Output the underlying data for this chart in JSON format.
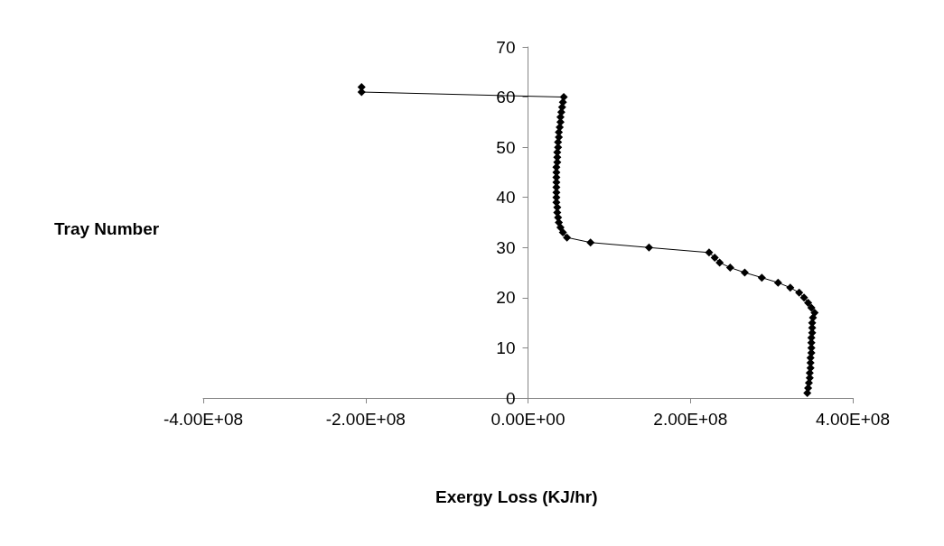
{
  "chart_data": {
    "type": "line",
    "xlabel": "Exergy Loss (KJ/hr)",
    "ylabel": "Tray Number",
    "marker": "diamond",
    "line_style": "solid",
    "grid": false,
    "xlim": [
      -400000000,
      400000000
    ],
    "xticks": [
      {
        "value": -400000000,
        "label": "-4.00E+08"
      },
      {
        "value": -200000000,
        "label": "-2.00E+08"
      },
      {
        "value": 0,
        "label": "0.00E+00"
      },
      {
        "value": 200000000,
        "label": "2.00E+08"
      },
      {
        "value": 400000000,
        "label": "4.00E+08"
      }
    ],
    "ylim": [
      0,
      70
    ],
    "yticks": [
      0,
      10,
      20,
      30,
      40,
      50,
      60,
      70
    ],
    "series": [
      {
        "color": "#000000",
        "x": [
          344000000,
          345000000,
          346000000,
          347000000,
          347000000,
          348000000,
          348000000,
          348000000,
          349000000,
          349000000,
          349000000,
          349000000,
          350000000,
          350000000,
          350000000,
          351000000,
          353000000,
          349000000,
          345000000,
          340000000,
          334000000,
          323000000,
          308000000,
          288000000,
          267000000,
          249000000,
          236000000,
          230000000,
          223000000,
          149000000,
          77000000,
          48000000,
          43000000,
          40000000,
          38000000,
          37000000,
          36000000,
          36000000,
          35000000,
          35000000,
          35000000,
          35000000,
          35000000,
          35000000,
          35000000,
          35000000,
          36000000,
          36000000,
          36000000,
          37000000,
          37000000,
          38000000,
          38000000,
          39000000,
          40000000,
          40000000,
          41000000,
          42000000,
          43000000,
          44000000,
          -205000000,
          -205000000
        ],
        "values": [
          1,
          2,
          3,
          4,
          5,
          6,
          7,
          8,
          9,
          10,
          11,
          12,
          13,
          14,
          15,
          16,
          17,
          18,
          19,
          20,
          21,
          22,
          23,
          24,
          25,
          26,
          27,
          28,
          29,
          30,
          31,
          32,
          33,
          34,
          35,
          36,
          37,
          38,
          39,
          40,
          41,
          42,
          43,
          44,
          45,
          46,
          47,
          48,
          49,
          50,
          51,
          52,
          53,
          54,
          55,
          56,
          57,
          58,
          59,
          60,
          61,
          62
        ]
      }
    ]
  }
}
